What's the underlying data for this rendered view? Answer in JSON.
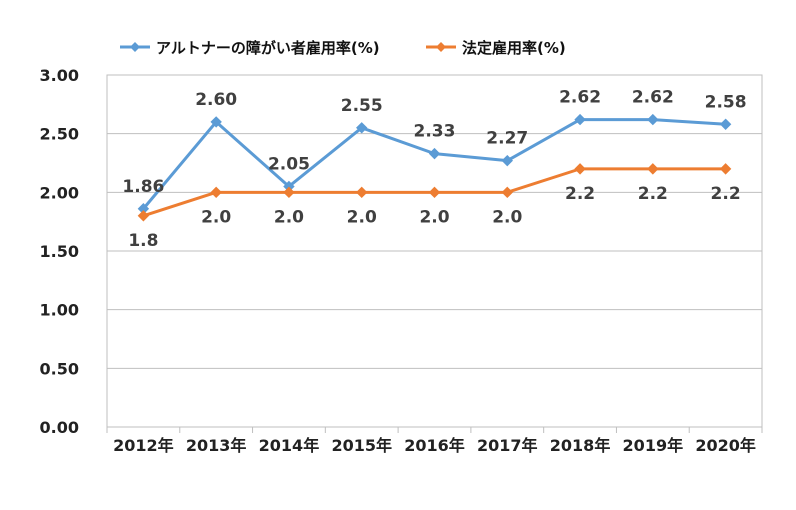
{
  "chart_data": {
    "type": "line",
    "categories": [
      "2012年",
      "2013年",
      "2014年",
      "2015年",
      "2016年",
      "2017年",
      "2018年",
      "2019年",
      "2020年"
    ],
    "ylim": [
      0,
      3
    ],
    "yticks": [
      "0.00",
      "0.50",
      "1.00",
      "1.50",
      "2.00",
      "2.50",
      "3.00"
    ],
    "grid": true,
    "legend_position": "top",
    "series": [
      {
        "name": "アルトナーの障がい者雇用率(%)",
        "color": "#5b9bd5",
        "values": [
          1.86,
          2.6,
          2.05,
          2.55,
          2.33,
          2.27,
          2.62,
          2.62,
          2.58
        ],
        "labels": [
          "1.86",
          "2.60",
          "2.05",
          "2.55",
          "2.33",
          "2.27",
          "2.62",
          "2.62",
          "2.58"
        ],
        "label_position": "above"
      },
      {
        "name": "法定雇用率(%)",
        "color": "#ed7d31",
        "values": [
          1.8,
          2.0,
          2.0,
          2.0,
          2.0,
          2.0,
          2.2,
          2.2,
          2.2
        ],
        "labels": [
          "1.8",
          "2.0",
          "2.0",
          "2.0",
          "2.0",
          "2.0",
          "2.2",
          "2.2",
          "2.2"
        ],
        "label_position": "below"
      }
    ]
  }
}
